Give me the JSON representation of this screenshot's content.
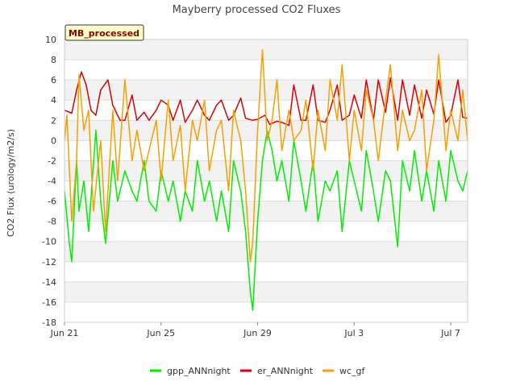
{
  "chart_data": {
    "type": "line",
    "title": "Mayberry processed CO2 Fluxes",
    "xlabel": "",
    "ylabel": "CO2 Flux (urology/m2/s)",
    "badge": "MB_processed",
    "xlim": [
      0,
      16.7
    ],
    "ylim": [
      -18,
      10
    ],
    "yticks": [
      10,
      8,
      6,
      4,
      2,
      0,
      -2,
      -4,
      -6,
      -8,
      -10,
      -12,
      -14,
      -16,
      -18
    ],
    "xticks": [
      {
        "label": "Jun 21",
        "day": 0
      },
      {
        "label": "Jun 25",
        "day": 4
      },
      {
        "label": "Jun 29",
        "day": 8
      },
      {
        "label": "Jul 3",
        "day": 12
      },
      {
        "label": "Jul 7",
        "day": 16
      }
    ],
    "grid": true,
    "legend_position": "bottom",
    "series": [
      {
        "name": "gpp_ANNnight",
        "color": "#00ee00",
        "x": [
          0.0,
          0.2,
          0.3,
          0.5,
          0.6,
          0.8,
          1.0,
          1.3,
          1.5,
          1.7,
          2.0,
          2.2,
          2.5,
          2.8,
          3.0,
          3.3,
          3.5,
          3.8,
          4.0,
          4.3,
          4.5,
          4.8,
          5.0,
          5.3,
          5.5,
          5.8,
          6.0,
          6.3,
          6.5,
          6.8,
          7.0,
          7.3,
          7.5,
          7.7,
          7.8,
          8.0,
          8.2,
          8.4,
          8.6,
          8.8,
          9.0,
          9.3,
          9.5,
          9.8,
          10.0,
          10.3,
          10.5,
          10.8,
          11.0,
          11.3,
          11.5,
          11.8,
          12.0,
          12.3,
          12.5,
          12.8,
          13.0,
          13.3,
          13.5,
          13.8,
          14.0,
          14.3,
          14.5,
          14.8,
          15.0,
          15.3,
          15.5,
          15.8,
          16.0,
          16.3,
          16.5,
          16.7
        ],
        "y": [
          -5,
          -10.2,
          -12,
          -2,
          -7,
          -4,
          -9,
          1,
          -6,
          -10.2,
          -2,
          -6,
          -3,
          -5,
          -6,
          -2,
          -6,
          -7,
          -3,
          -6,
          -4,
          -8,
          -5,
          -7,
          -2,
          -6,
          -4,
          -8,
          -5,
          -9,
          -2,
          -5,
          -9,
          -15,
          -16.8,
          -8,
          -2,
          1,
          -1,
          -4,
          -2,
          -6,
          0,
          -4,
          -7,
          -2,
          -8,
          -4,
          -5,
          -3,
          -9,
          -2,
          -4,
          -7,
          -1,
          -5,
          -8,
          -3,
          -4,
          -10.5,
          -2,
          -5,
          -1,
          -6,
          -3,
          -7,
          -2,
          -6,
          -1,
          -4,
          -5,
          -3
        ]
      },
      {
        "name": "er_ANNnight",
        "color": "#dd0000",
        "x": [
          0.0,
          0.3,
          0.5,
          0.7,
          0.9,
          1.1,
          1.3,
          1.5,
          1.8,
          2.0,
          2.3,
          2.5,
          2.8,
          3.0,
          3.3,
          3.5,
          3.8,
          4.0,
          4.3,
          4.5,
          4.8,
          5.0,
          5.3,
          5.5,
          5.8,
          6.0,
          6.3,
          6.5,
          6.8,
          7.0,
          7.3,
          7.5,
          7.8,
          8.0,
          8.3,
          8.5,
          8.8,
          9.0,
          9.3,
          9.5,
          9.8,
          10.0,
          10.3,
          10.5,
          10.8,
          11.0,
          11.3,
          11.5,
          11.8,
          12.0,
          12.3,
          12.5,
          12.8,
          13.0,
          13.3,
          13.5,
          13.8,
          14.0,
          14.3,
          14.5,
          14.8,
          15.0,
          15.3,
          15.5,
          15.8,
          16.0,
          16.3,
          16.5,
          16.7
        ],
        "y": [
          3,
          2.7,
          5,
          6.8,
          5.5,
          3,
          2.5,
          5,
          6,
          3.5,
          2,
          2,
          4.5,
          2,
          2.8,
          2,
          3,
          4,
          3.5,
          2,
          4,
          1.8,
          3,
          4,
          2.5,
          2,
          3.5,
          4,
          2,
          2.5,
          4.2,
          2.2,
          2,
          2.1,
          2.5,
          1.6,
          1.9,
          1.8,
          1.5,
          5.5,
          2,
          2,
          5.5,
          2,
          1.8,
          3,
          5.5,
          2,
          2.5,
          4.5,
          2.2,
          6,
          2,
          6,
          2.8,
          6.2,
          2,
          6,
          2.5,
          5.5,
          2.2,
          5,
          2.6,
          6,
          1.8,
          2.5,
          6,
          2.3,
          2.2
        ]
      },
      {
        "name": "wc_gf",
        "color": "#f5a000",
        "x": [
          0.0,
          0.1,
          0.3,
          0.5,
          0.6,
          0.8,
          1.0,
          1.2,
          1.5,
          1.7,
          2.0,
          2.2,
          2.5,
          2.8,
          3.0,
          3.3,
          3.5,
          3.8,
          4.0,
          4.3,
          4.5,
          4.8,
          5.0,
          5.3,
          5.5,
          5.8,
          6.0,
          6.3,
          6.5,
          6.8,
          7.0,
          7.3,
          7.5,
          7.7,
          7.8,
          8.0,
          8.2,
          8.4,
          8.6,
          8.8,
          9.0,
          9.3,
          9.5,
          9.8,
          10.0,
          10.3,
          10.5,
          10.8,
          11.0,
          11.3,
          11.5,
          11.8,
          12.0,
          12.3,
          12.5,
          12.8,
          13.0,
          13.3,
          13.5,
          13.8,
          14.0,
          14.3,
          14.5,
          14.8,
          15.0,
          15.3,
          15.5,
          15.8,
          16.0,
          16.3,
          16.5,
          16.7
        ],
        "y": [
          0,
          2.5,
          -8,
          -2,
          6.5,
          1,
          3,
          -7,
          0,
          -9,
          3,
          -4,
          6,
          -2,
          1,
          -3,
          -1,
          2,
          -4,
          4,
          -2,
          1.5,
          -5,
          2,
          0,
          4,
          -3,
          1,
          2,
          -5,
          3,
          0,
          -5,
          -12,
          -10,
          1,
          9,
          0,
          2,
          6,
          -1,
          3,
          0,
          1,
          4,
          -3,
          3,
          -1,
          6,
          2,
          7.5,
          -2,
          3,
          -1,
          5,
          2,
          -2,
          4,
          7.5,
          -1,
          3,
          0,
          1,
          5,
          -3,
          2,
          8.5,
          -1,
          3,
          0,
          5,
          0
        ]
      }
    ]
  }
}
